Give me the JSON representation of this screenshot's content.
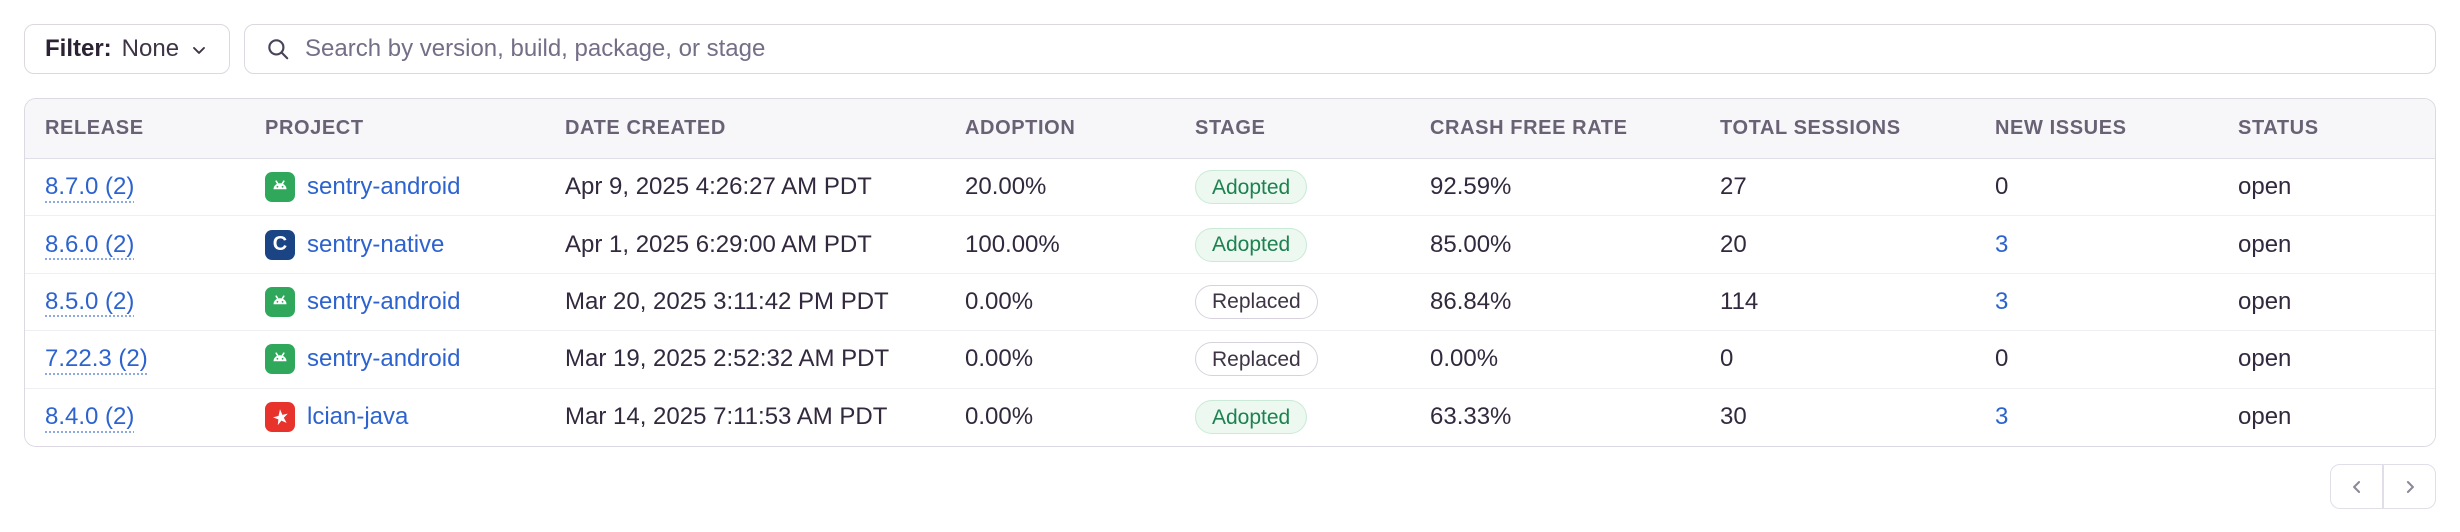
{
  "toolbar": {
    "filter_label": "Filter:",
    "filter_value": "None",
    "search_placeholder": "Search by version, build, package, or stage"
  },
  "table": {
    "columns": [
      "RELEASE",
      "PROJECT",
      "DATE CREATED",
      "ADOPTION",
      "STAGE",
      "CRASH FREE RATE",
      "TOTAL SESSIONS",
      "NEW ISSUES",
      "STATUS"
    ],
    "rows": [
      {
        "release": "8.7.0 (2)",
        "project": "sentry-android",
        "project_icon": "android",
        "date_created": "Apr 9, 2025 4:26:27 AM PDT",
        "adoption": "20.00%",
        "stage": "Adopted",
        "stage_variant": "adopted",
        "crash_free_rate": "92.59%",
        "total_sessions": "27",
        "new_issues": "0",
        "new_issues_is_link": false,
        "status": "open"
      },
      {
        "release": "8.6.0 (2)",
        "project": "sentry-native",
        "project_icon": "c",
        "date_created": "Apr 1, 2025 6:29:00 AM PDT",
        "adoption": "100.00%",
        "stage": "Adopted",
        "stage_variant": "adopted",
        "crash_free_rate": "85.00%",
        "total_sessions": "20",
        "new_issues": "3",
        "new_issues_is_link": true,
        "status": "open"
      },
      {
        "release": "8.5.0 (2)",
        "project": "sentry-android",
        "project_icon": "android",
        "date_created": "Mar 20, 2025 3:11:42 PM PDT",
        "adoption": "0.00%",
        "stage": "Replaced",
        "stage_variant": "replaced",
        "crash_free_rate": "86.84%",
        "total_sessions": "114",
        "new_issues": "3",
        "new_issues_is_link": true,
        "status": "open"
      },
      {
        "release": "7.22.3 (2)",
        "project": "sentry-android",
        "project_icon": "android",
        "date_created": "Mar 19, 2025 2:52:32 AM PDT",
        "adoption": "0.00%",
        "stage": "Replaced",
        "stage_variant": "replaced",
        "crash_free_rate": "0.00%",
        "total_sessions": "0",
        "new_issues": "0",
        "new_issues_is_link": false,
        "status": "open"
      },
      {
        "release": "8.4.0 (2)",
        "project": "lcian-java",
        "project_icon": "java",
        "date_created": "Mar 14, 2025 7:11:53 AM PDT",
        "adoption": "0.00%",
        "stage": "Adopted",
        "stage_variant": "adopted",
        "crash_free_rate": "63.33%",
        "total_sessions": "30",
        "new_issues": "3",
        "new_issues_is_link": true,
        "status": "open"
      }
    ]
  },
  "pagination": {
    "prev_icon": "chevron-left-icon",
    "next_icon": "chevron-right-icon"
  },
  "colors": {
    "link_blue": "#2d63cf",
    "adopted_green_text": "#1d8150",
    "adopted_green_bg": "#ecf8f0",
    "android_icon_green": "#2fa85c",
    "c_icon_navy": "#1b4485",
    "java_icon_red": "#e8332c",
    "header_bg": "#f7f6f9",
    "border": "#dcd7e1"
  }
}
